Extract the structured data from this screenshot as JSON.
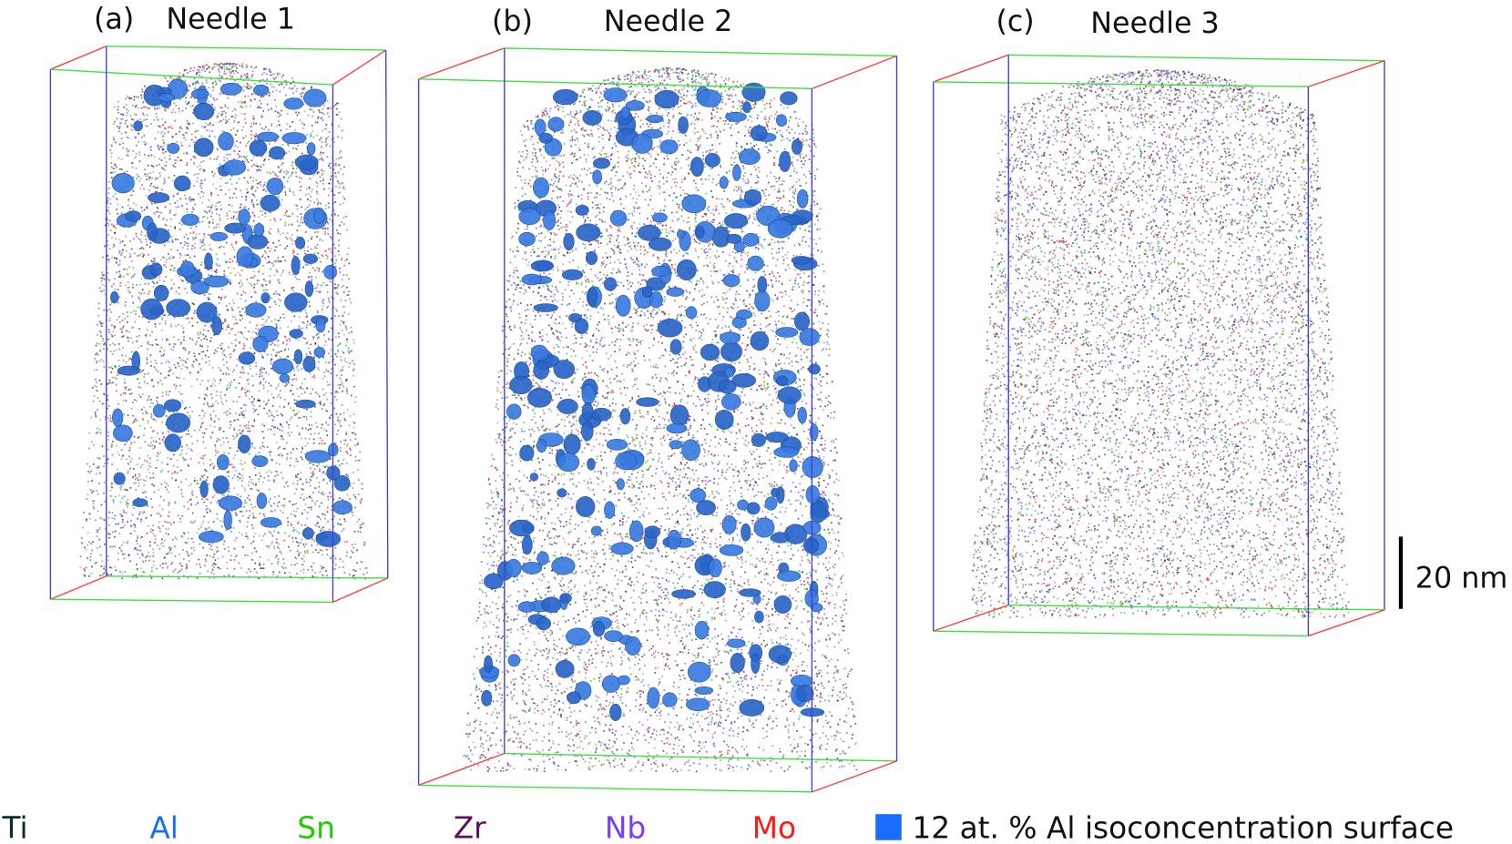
{
  "panels": [
    {
      "letter": "(a)",
      "title": "Needle 1"
    },
    {
      "letter": "(b)",
      "title": "Needle 2"
    },
    {
      "letter": "(c)",
      "title": "Needle 3"
    }
  ],
  "scale_bar": {
    "label": "20 nm"
  },
  "legend": {
    "elements": [
      {
        "label": "Ti",
        "color": "#0d2b2b"
      },
      {
        "label": "Al",
        "color": "#1a6cff"
      },
      {
        "label": "Sn",
        "color": "#22cc00"
      },
      {
        "label": "Zr",
        "color": "#5a1060"
      },
      {
        "label": "Nb",
        "color": "#7a3cff"
      },
      {
        "label": "Mo",
        "color": "#ff1a1a"
      }
    ],
    "isosurface": {
      "label": "12 at. % Al isoconcentration surface",
      "color": "#1a6cff"
    }
  },
  "box_colors": {
    "x": "#ff4040",
    "y": "#40e040",
    "z": "#4040e0"
  }
}
